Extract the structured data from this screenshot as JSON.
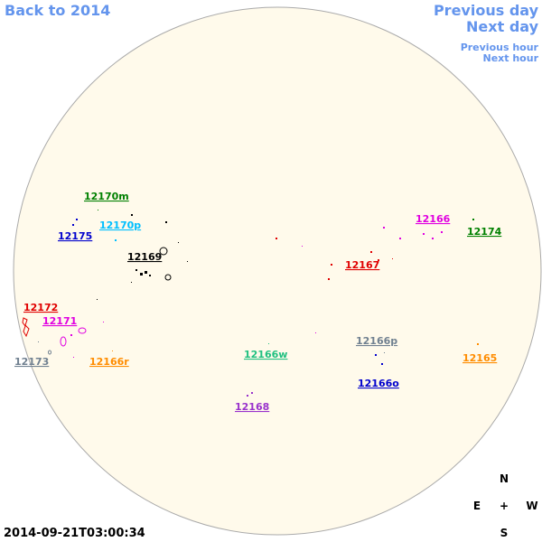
{
  "nav": {
    "back": "Back to 2014",
    "previous_day": "Previous day",
    "next_day": "Next day",
    "previous_hour": "Previous hour",
    "next_hour": "Next hour"
  },
  "regions": [
    {
      "label": "12170m",
      "color": "#008000"
    },
    {
      "label": "12175",
      "color": "#0000cd"
    },
    {
      "label": "12170p",
      "color": "#00bfff"
    },
    {
      "label": "12169",
      "color": "#000000"
    },
    {
      "label": "12166",
      "color": "#e000e0"
    },
    {
      "label": "12174",
      "color": "#008000"
    },
    {
      "label": "12167",
      "color": "#e00000"
    },
    {
      "label": "12172",
      "color": "#e00000"
    },
    {
      "label": "12171",
      "color": "#e000e0"
    },
    {
      "label": "12173",
      "color": "#708090"
    },
    {
      "label": "12166r",
      "color": "#ff8c00"
    },
    {
      "label": "12166w",
      "color": "#20c080"
    },
    {
      "label": "12166p",
      "color": "#708090"
    },
    {
      "label": "12165",
      "color": "#ff8c00"
    },
    {
      "label": "12166o",
      "color": "#0000cd"
    },
    {
      "label": "12168",
      "color": "#9932cc"
    }
  ],
  "compass": {
    "north": "N",
    "east": "E",
    "center": "+",
    "west": "W",
    "south": "S"
  },
  "timestamp": "2014-09-21T03:00:34"
}
